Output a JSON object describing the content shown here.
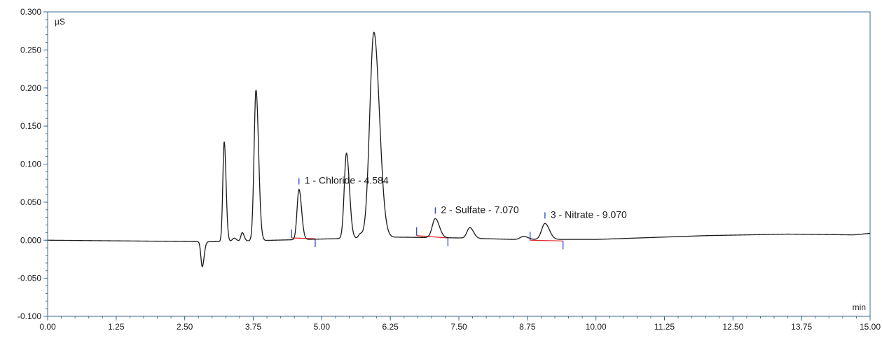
{
  "chart_data": {
    "type": "line",
    "title": "",
    "xlabel": "min",
    "ylabel": "µS",
    "xlim": [
      0,
      15
    ],
    "ylim": [
      -0.1,
      0.3
    ],
    "x_ticks": [
      "0.00",
      "1.25",
      "2.50",
      "3.75",
      "5.00",
      "6.25",
      "7.50",
      "8.75",
      "10.00",
      "11.25",
      "12.50",
      "13.75",
      "15.00"
    ],
    "x_tick_values": [
      0,
      1.25,
      2.5,
      3.75,
      5,
      6.25,
      7.5,
      8.75,
      10,
      11.25,
      12.5,
      13.75,
      15
    ],
    "y_ticks": [
      "-0.100",
      "-0.050",
      "0.000",
      "0.050",
      "0.100",
      "0.150",
      "0.200",
      "0.250",
      "0.300"
    ],
    "y_tick_values": [
      -0.1,
      -0.05,
      0,
      0.05,
      0.1,
      0.15,
      0.2,
      0.25,
      0.3
    ],
    "baseline": [
      [
        0,
        0.0
      ],
      [
        2.4,
        -0.002
      ],
      [
        2.65,
        -0.004
      ]
    ],
    "peaks": [
      {
        "rt": 2.82,
        "height": -0.033,
        "width": 0.025
      },
      {
        "rt": 3.22,
        "height": 0.131,
        "width": 0.025
      },
      {
        "rt": 3.4,
        "height": 0.004,
        "width": 0.03
      },
      {
        "rt": 3.55,
        "height": 0.011,
        "width": 0.025
      },
      {
        "rt": 3.8,
        "height": 0.198,
        "width": 0.035
      },
      {
        "rt": 4.584,
        "height": 0.066,
        "width": 0.035
      },
      {
        "rt": 5.45,
        "height": 0.112,
        "width": 0.04
      },
      {
        "rt": 5.7,
        "height": 0.005,
        "width": 0.03
      },
      {
        "rt": 5.95,
        "height": 0.27,
        "width": 0.075
      },
      {
        "rt": 7.07,
        "height": 0.025,
        "width": 0.055
      },
      {
        "rt": 7.7,
        "height": 0.014,
        "width": 0.05
      },
      {
        "rt": 8.68,
        "height": 0.004,
        "width": 0.06
      },
      {
        "rt": 9.07,
        "height": 0.021,
        "width": 0.06
      }
    ],
    "drift": [
      [
        0,
        0.0
      ],
      [
        3.0,
        -0.002
      ],
      [
        6.4,
        0.004
      ],
      [
        7.5,
        0.003
      ],
      [
        8.5,
        0.001
      ],
      [
        10.0,
        0.001
      ],
      [
        12.0,
        0.006
      ],
      [
        13.5,
        0.008
      ],
      [
        14.7,
        0.007
      ],
      [
        15.0,
        0.009
      ]
    ],
    "integrations": [
      {
        "label": "1 - Chloride - 4.584",
        "rt": 4.584,
        "start": 4.45,
        "end": 4.88,
        "start_y": 0.003,
        "end_y": 0.002
      },
      {
        "label": "2 - Sulfate - 7.070",
        "rt": 7.07,
        "start": 6.73,
        "end": 7.3,
        "start_y": 0.006,
        "end_y": 0.003
      },
      {
        "label": "3 - Nitrate - 9.070",
        "rt": 9.07,
        "start": 8.8,
        "end": 9.4,
        "start_y": 0.0,
        "end_y": -0.001
      }
    ],
    "grid": false,
    "line_color": "#1a1a1a",
    "baseline_color": "#e02020",
    "marker_color": "#2233cc",
    "axis_color": "#3c6b8f"
  }
}
